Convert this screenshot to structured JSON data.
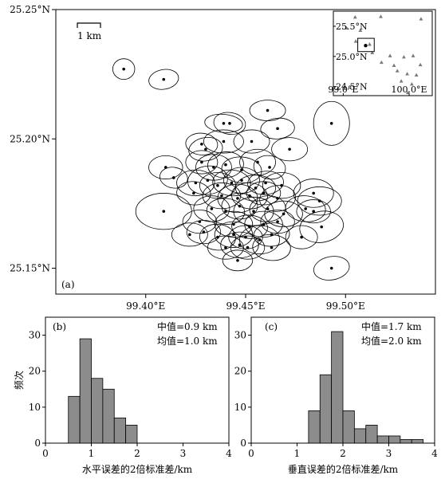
{
  "chart_data": [
    {
      "id": "a",
      "type": "scatter",
      "panel_label": "(a)",
      "xlabel": "",
      "ylabel": "",
      "xlim": [
        99.355,
        99.545
      ],
      "ylim": [
        25.14,
        25.25
      ],
      "x_ticks": [
        {
          "value": 99.4,
          "label": "99.40°E"
        },
        {
          "value": 99.45,
          "label": "99.45°E"
        },
        {
          "value": 99.5,
          "label": "99.50°E"
        }
      ],
      "y_ticks": [
        {
          "value": 25.15,
          "label": "25.15°N"
        },
        {
          "value": 25.2,
          "label": "25.20°N"
        },
        {
          "value": 25.25,
          "label": "25.25°N"
        }
      ],
      "scale_bar_label": "1 km",
      "scale_bar_km": 1,
      "events": [
        {
          "x": 99.389,
          "y": 25.227,
          "rx": 0.0055,
          "ry": 0.004,
          "rot": 0
        },
        {
          "x": 99.409,
          "y": 25.223,
          "rx": 0.0075,
          "ry": 0.0038,
          "rot": -10
        },
        {
          "x": 99.493,
          "y": 25.206,
          "rx": 0.009,
          "ry": 0.0085,
          "rot": 0
        },
        {
          "x": 99.439,
          "y": 25.206,
          "rx": 0.0095,
          "ry": 0.0035,
          "rot": 5
        },
        {
          "x": 99.461,
          "y": 25.211,
          "rx": 0.009,
          "ry": 0.004,
          "rot": 0
        },
        {
          "x": 99.442,
          "y": 25.206,
          "rx": 0.008,
          "ry": 0.0042,
          "rot": 8
        },
        {
          "x": 99.466,
          "y": 25.204,
          "rx": 0.0085,
          "ry": 0.004,
          "rot": -5
        },
        {
          "x": 99.472,
          "y": 25.196,
          "rx": 0.009,
          "ry": 0.0045,
          "rot": 0
        },
        {
          "x": 99.428,
          "y": 25.198,
          "rx": 0.008,
          "ry": 0.0042,
          "rot": 5
        },
        {
          "x": 99.439,
          "y": 25.199,
          "rx": 0.01,
          "ry": 0.0045,
          "rot": 0
        },
        {
          "x": 99.453,
          "y": 25.199,
          "rx": 0.009,
          "ry": 0.0045,
          "rot": 0
        },
        {
          "x": 99.43,
          "y": 25.196,
          "rx": 0.0085,
          "ry": 0.0045,
          "rot": -10
        },
        {
          "x": 99.41,
          "y": 25.189,
          "rx": 0.0085,
          "ry": 0.0045,
          "rot": 0
        },
        {
          "x": 99.414,
          "y": 25.185,
          "rx": 0.007,
          "ry": 0.004,
          "rot": 10
        },
        {
          "x": 99.428,
          "y": 25.191,
          "rx": 0.008,
          "ry": 0.0045,
          "rot": 0
        },
        {
          "x": 99.434,
          "y": 25.189,
          "rx": 0.009,
          "ry": 0.005,
          "rot": 0
        },
        {
          "x": 99.44,
          "y": 25.19,
          "rx": 0.009,
          "ry": 0.005,
          "rot": -5
        },
        {
          "x": 99.448,
          "y": 25.188,
          "rx": 0.01,
          "ry": 0.005,
          "rot": 5
        },
        {
          "x": 99.456,
          "y": 25.191,
          "rx": 0.009,
          "ry": 0.005,
          "rot": 0
        },
        {
          "x": 99.462,
          "y": 25.189,
          "rx": 0.008,
          "ry": 0.0045,
          "rot": 10
        },
        {
          "x": 99.425,
          "y": 25.183,
          "rx": 0.0095,
          "ry": 0.005,
          "rot": 0
        },
        {
          "x": 99.431,
          "y": 25.184,
          "rx": 0.01,
          "ry": 0.0055,
          "rot": -8
        },
        {
          "x": 99.436,
          "y": 25.182,
          "rx": 0.009,
          "ry": 0.005,
          "rot": 0
        },
        {
          "x": 99.443,
          "y": 25.183,
          "rx": 0.0095,
          "ry": 0.005,
          "rot": 5
        },
        {
          "x": 99.448,
          "y": 25.184,
          "rx": 0.009,
          "ry": 0.005,
          "rot": 0
        },
        {
          "x": 99.455,
          "y": 25.181,
          "rx": 0.01,
          "ry": 0.005,
          "rot": 0
        },
        {
          "x": 99.46,
          "y": 25.183,
          "rx": 0.009,
          "ry": 0.0045,
          "rot": -5
        },
        {
          "x": 99.468,
          "y": 25.182,
          "rx": 0.0095,
          "ry": 0.005,
          "rot": 0
        },
        {
          "x": 99.424,
          "y": 25.179,
          "rx": 0.0085,
          "ry": 0.0045,
          "rot": 5
        },
        {
          "x": 99.438,
          "y": 25.178,
          "rx": 0.0095,
          "ry": 0.005,
          "rot": 0
        },
        {
          "x": 99.446,
          "y": 25.177,
          "rx": 0.01,
          "ry": 0.0055,
          "rot": 0
        },
        {
          "x": 99.452,
          "y": 25.178,
          "rx": 0.009,
          "ry": 0.005,
          "rot": 5
        },
        {
          "x": 99.459,
          "y": 25.179,
          "rx": 0.0085,
          "ry": 0.0045,
          "rot": 0
        },
        {
          "x": 99.466,
          "y": 25.177,
          "rx": 0.009,
          "ry": 0.005,
          "rot": -8
        },
        {
          "x": 99.484,
          "y": 25.179,
          "rx": 0.01,
          "ry": 0.0055,
          "rot": 0
        },
        {
          "x": 99.487,
          "y": 25.176,
          "rx": 0.011,
          "ry": 0.0055,
          "rot": 0
        },
        {
          "x": 99.409,
          "y": 25.172,
          "rx": 0.014,
          "ry": 0.007,
          "rot": 0
        },
        {
          "x": 99.433,
          "y": 25.173,
          "rx": 0.009,
          "ry": 0.005,
          "rot": 0
        },
        {
          "x": 99.44,
          "y": 25.172,
          "rx": 0.0095,
          "ry": 0.005,
          "rot": 5
        },
        {
          "x": 99.447,
          "y": 25.174,
          "rx": 0.009,
          "ry": 0.005,
          "rot": 0
        },
        {
          "x": 99.454,
          "y": 25.172,
          "rx": 0.01,
          "ry": 0.0055,
          "rot": 0
        },
        {
          "x": 99.461,
          "y": 25.173,
          "rx": 0.009,
          "ry": 0.005,
          "rot": -5
        },
        {
          "x": 99.469,
          "y": 25.171,
          "rx": 0.0095,
          "ry": 0.005,
          "rot": 0
        },
        {
          "x": 99.48,
          "y": 25.173,
          "rx": 0.01,
          "ry": 0.005,
          "rot": 5
        },
        {
          "x": 99.484,
          "y": 25.172,
          "rx": 0.0085,
          "ry": 0.0045,
          "rot": 0
        },
        {
          "x": 99.427,
          "y": 25.168,
          "rx": 0.0085,
          "ry": 0.0045,
          "rot": 0
        },
        {
          "x": 99.444,
          "y": 25.167,
          "rx": 0.0095,
          "ry": 0.005,
          "rot": 0
        },
        {
          "x": 99.452,
          "y": 25.166,
          "rx": 0.009,
          "ry": 0.0045,
          "rot": 5
        },
        {
          "x": 99.459,
          "y": 25.167,
          "rx": 0.0095,
          "ry": 0.005,
          "rot": 0
        },
        {
          "x": 99.466,
          "y": 25.168,
          "rx": 0.0085,
          "ry": 0.0045,
          "rot": 0
        },
        {
          "x": 99.488,
          "y": 25.166,
          "rx": 0.011,
          "ry": 0.006,
          "rot": -10
        },
        {
          "x": 99.422,
          "y": 25.163,
          "rx": 0.009,
          "ry": 0.0045,
          "rot": 0
        },
        {
          "x": 99.429,
          "y": 25.164,
          "rx": 0.0085,
          "ry": 0.0045,
          "rot": 0
        },
        {
          "x": 99.436,
          "y": 25.162,
          "rx": 0.009,
          "ry": 0.005,
          "rot": 5
        },
        {
          "x": 99.444,
          "y": 25.163,
          "rx": 0.0095,
          "ry": 0.005,
          "rot": 0
        },
        {
          "x": 99.45,
          "y": 25.162,
          "rx": 0.0085,
          "ry": 0.0045,
          "rot": 0
        },
        {
          "x": 99.457,
          "y": 25.161,
          "rx": 0.01,
          "ry": 0.0055,
          "rot": 0
        },
        {
          "x": 99.463,
          "y": 25.163,
          "rx": 0.009,
          "ry": 0.0045,
          "rot": -5
        },
        {
          "x": 99.478,
          "y": 25.162,
          "rx": 0.008,
          "ry": 0.0045,
          "rot": 0
        },
        {
          "x": 99.44,
          "y": 25.158,
          "rx": 0.009,
          "ry": 0.0045,
          "rot": 0
        },
        {
          "x": 99.447,
          "y": 25.159,
          "rx": 0.0095,
          "ry": 0.005,
          "rot": 0
        },
        {
          "x": 99.451,
          "y": 25.158,
          "rx": 0.0085,
          "ry": 0.0045,
          "rot": 0
        },
        {
          "x": 99.463,
          "y": 25.158,
          "rx": 0.0095,
          "ry": 0.005,
          "rot": 5
        },
        {
          "x": 99.446,
          "y": 25.153,
          "rx": 0.0075,
          "ry": 0.004,
          "rot": 0
        },
        {
          "x": 99.493,
          "y": 25.15,
          "rx": 0.009,
          "ry": 0.0045,
          "rot": -10
        }
      ],
      "inset": {
        "xlim": [
          98.85,
          100.35
        ],
        "ylim": [
          24.35,
          25.75
        ],
        "x_ticks": [
          {
            "value": 99.0,
            "label": "99.0°E"
          },
          {
            "value": 100.0,
            "label": "100.0°E"
          }
        ],
        "y_ticks": [
          {
            "value": 24.5,
            "label": "24.5°N"
          },
          {
            "value": 25.0,
            "label": "25.0°N"
          },
          {
            "value": 25.5,
            "label": "25.5°N"
          }
        ],
        "stations": [
          {
            "x": 99.18,
            "y": 25.65
          },
          {
            "x": 99.57,
            "y": 25.66
          },
          {
            "x": 100.18,
            "y": 25.62
          },
          {
            "x": 99.05,
            "y": 25.47
          },
          {
            "x": 99.26,
            "y": 25.43
          },
          {
            "x": 99.19,
            "y": 25.25
          },
          {
            "x": 99.4,
            "y": 25.2
          },
          {
            "x": 99.44,
            "y": 25.06
          },
          {
            "x": 99.71,
            "y": 25.01
          },
          {
            "x": 99.92,
            "y": 24.99
          },
          {
            "x": 100.06,
            "y": 25.01
          },
          {
            "x": 99.58,
            "y": 24.9
          },
          {
            "x": 99.77,
            "y": 24.85
          },
          {
            "x": 100.17,
            "y": 24.86
          },
          {
            "x": 99.82,
            "y": 24.76
          },
          {
            "x": 99.97,
            "y": 24.71
          },
          {
            "x": 100.11,
            "y": 24.69
          },
          {
            "x": 99.88,
            "y": 24.59
          },
          {
            "x": 100.04,
            "y": 24.54
          },
          {
            "x": 99.98,
            "y": 24.4
          }
        ],
        "study_area": {
          "x0": 99.22,
          "x1": 99.47,
          "y0": 25.08,
          "y1": 25.3
        },
        "events_marker": {
          "x": 99.34,
          "y": 25.18
        }
      }
    },
    {
      "id": "b",
      "type": "bar",
      "panel_label": "(b)",
      "xlabel": "水平误差的2倍标准差/km",
      "ylabel": "频次",
      "xlim": [
        0,
        4
      ],
      "ylim": [
        0,
        35
      ],
      "x_ticks": [
        0,
        1,
        2,
        3,
        4
      ],
      "y_ticks": [
        0,
        10,
        20,
        30
      ],
      "bin_width": 0.25,
      "bins": [
        {
          "start": 0.5,
          "value": 13
        },
        {
          "start": 0.75,
          "value": 29
        },
        {
          "start": 1.0,
          "value": 18
        },
        {
          "start": 1.25,
          "value": 15
        },
        {
          "start": 1.5,
          "value": 7
        },
        {
          "start": 1.75,
          "value": 5
        }
      ],
      "stats": [
        "中值=0.9 km",
        "均值=1.0 km"
      ]
    },
    {
      "id": "c",
      "type": "bar",
      "panel_label": "(c)",
      "xlabel": "垂直误差的2倍标准差/km",
      "ylabel": "",
      "xlim": [
        0,
        4
      ],
      "ylim": [
        0,
        35
      ],
      "x_ticks": [
        0,
        1,
        2,
        3,
        4
      ],
      "y_ticks": [
        0,
        10,
        20,
        30
      ],
      "bin_width": 0.25,
      "bins": [
        {
          "start": 1.25,
          "value": 9
        },
        {
          "start": 1.5,
          "value": 19
        },
        {
          "start": 1.75,
          "value": 31
        },
        {
          "start": 2.0,
          "value": 9
        },
        {
          "start": 2.25,
          "value": 4
        },
        {
          "start": 2.5,
          "value": 5
        },
        {
          "start": 2.75,
          "value": 2
        },
        {
          "start": 3.0,
          "value": 2
        },
        {
          "start": 3.25,
          "value": 1
        },
        {
          "start": 3.5,
          "value": 1
        }
      ],
      "stats": [
        "中值=1.7 km",
        "均值=2.0 km"
      ]
    }
  ],
  "colors": {
    "bar_fill": "#8c8c8c",
    "bar_stroke": "#000000",
    "marker": "#000000",
    "station": "#7a7a7a"
  }
}
